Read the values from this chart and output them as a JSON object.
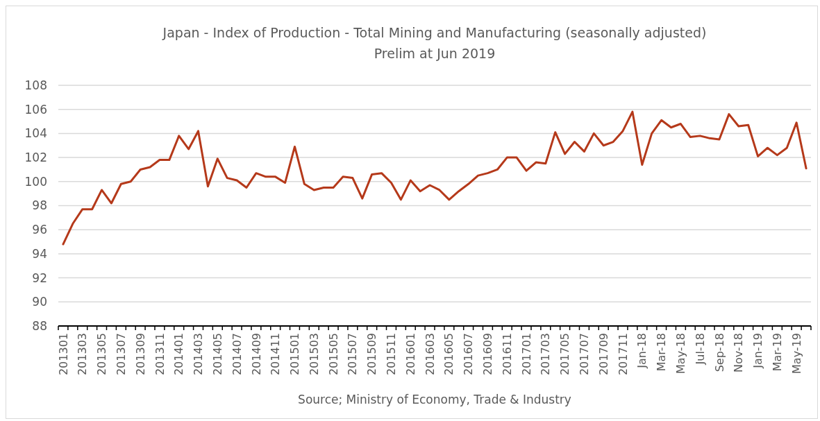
{
  "chart_data": {
    "type": "line",
    "title": "Japan - Index of Production - Total Mining and Manufacturing (seasonally adjusted)",
    "subtitle": "Prelim at Jun 2019",
    "categories": [
      "201301",
      null,
      "201303",
      null,
      "201305",
      null,
      "201307",
      null,
      "201309",
      null,
      "201311",
      null,
      "201401",
      null,
      "201403",
      null,
      "201405",
      null,
      "201407",
      null,
      "201409",
      null,
      "201411",
      null,
      "201501",
      null,
      "201503",
      null,
      "201505",
      null,
      "201507",
      null,
      "201509",
      null,
      "201511",
      null,
      "201601",
      null,
      "201603",
      null,
      "201605",
      null,
      "201607",
      null,
      "201609",
      null,
      "201611",
      null,
      "201701",
      null,
      "201703",
      null,
      "201705",
      null,
      "201707",
      null,
      "201709",
      null,
      "201711",
      null,
      "Jan-18",
      null,
      "Mar-18",
      null,
      "May-18",
      null,
      "Jul-18",
      null,
      "Sep-18",
      null,
      "Nov-18",
      null,
      "Jan-19",
      null,
      "Mar-19",
      null,
      "May-19",
      null
    ],
    "series": [
      {
        "color": "#b5391a",
        "values": [
          94.8,
          96.5,
          97.7,
          97.7,
          99.3,
          98.2,
          99.8,
          100.0,
          101.0,
          101.2,
          101.8,
          101.8,
          103.8,
          102.7,
          104.2,
          99.6,
          101.9,
          100.3,
          100.1,
          99.5,
          100.7,
          100.4,
          100.4,
          99.9,
          102.9,
          99.8,
          99.3,
          99.5,
          99.5,
          100.4,
          100.3,
          98.6,
          100.6,
          100.7,
          99.9,
          98.5,
          100.1,
          99.2,
          99.7,
          99.3,
          98.5,
          99.2,
          99.8,
          100.5,
          100.7,
          101.0,
          102.0,
          102.0,
          100.9,
          101.6,
          101.5,
          104.1,
          102.3,
          103.3,
          102.5,
          104.0,
          103.0,
          103.3,
          104.2,
          105.8,
          101.4,
          104.0,
          105.1,
          104.5,
          104.8,
          103.7,
          103.8,
          103.6,
          103.5,
          105.6,
          104.6,
          104.7,
          102.1,
          102.8,
          102.2,
          102.8,
          104.9,
          101.1
        ]
      }
    ],
    "ylim": [
      88,
      108
    ],
    "yticks": [
      88,
      90,
      92,
      94,
      96,
      98,
      100,
      102,
      104,
      106,
      108
    ],
    "grid": "y",
    "annotations": [
      "Source; Ministry of Economy, Trade & Industry"
    ]
  }
}
